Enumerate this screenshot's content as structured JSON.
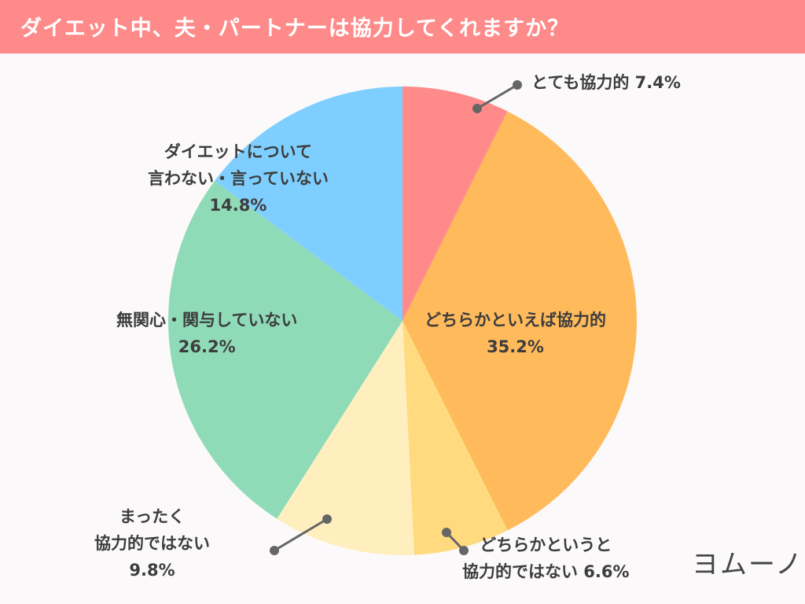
{
  "title": "ダイエット中、夫・パートナーは協力してくれますか？",
  "logo": "ヨムーノ",
  "chart_data": {
    "type": "pie",
    "title": "ダイエット中、夫・パートナーは協力してくれますか？",
    "start": "top",
    "direction": "clockwise",
    "slices": [
      {
        "label": "とても協力的",
        "value": 7.4,
        "value_label": "7.4%",
        "color": "#fe8a8a"
      },
      {
        "label": "どちらかといえば協力的",
        "value": 35.2,
        "value_label": "35.2%",
        "color": "#ffba5c"
      },
      {
        "label": "どちらかというと協力的ではない",
        "value": 6.6,
        "value_label": "6.6%",
        "color": "#ffda7e"
      },
      {
        "label": "まったく協力的ではない",
        "value": 9.8,
        "value_label": "9.8%",
        "color": "#ffefbf"
      },
      {
        "label": "無関心・関与していない",
        "value": 26.2,
        "value_label": "26.2%",
        "color": "#8fdbb8"
      },
      {
        "label": "ダイエットについて言わない・言っていない",
        "value": 14.8,
        "value_label": "14.8%",
        "color": "#7ecfff"
      }
    ],
    "label_lines": [
      [
        "とても協力的 7.4%"
      ],
      [
        "どちらかといえば協力的",
        "35.2%"
      ],
      [
        "どちらかというと",
        "協力的ではない 6.6%"
      ],
      [
        "まったく",
        "協力的ではない",
        "9.8%"
      ],
      [
        "無関心・関与していない",
        "26.2%"
      ],
      [
        "ダイエットについて",
        "言わない・言っていない",
        "14.8%"
      ]
    ]
  }
}
